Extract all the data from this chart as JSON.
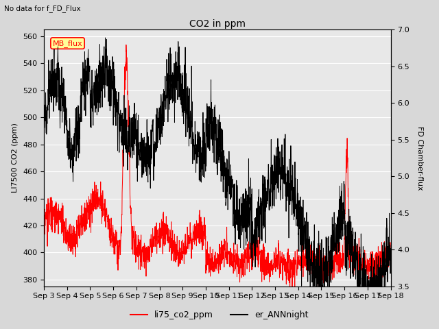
{
  "title": "CO2 in ppm",
  "suptitle": "No data for f_FD_Flux",
  "ylabel_left": "LI7500 CO2 (ppm)",
  "ylabel_right": "FD Chamber-flux",
  "ylim_left": [
    375,
    565
  ],
  "ylim_right": [
    3.5,
    7.0
  ],
  "yticks_left": [
    380,
    400,
    420,
    440,
    460,
    480,
    500,
    520,
    540,
    560
  ],
  "yticks_right": [
    3.5,
    4.0,
    4.5,
    5.0,
    5.5,
    6.0,
    6.5,
    7.0
  ],
  "xtick_labels": [
    "Sep 3",
    "Sep 4",
    "Sep 5",
    "Sep 6",
    "Sep 7",
    "Sep 8",
    "Sep 9",
    "Sep 10",
    "Sep 11",
    "Sep 12",
    "Sep 13",
    "Sep 14",
    "Sep 15",
    "Sep 16",
    "Sep 17",
    "Sep 18"
  ],
  "legend_entries": [
    "li75_co2_ppm",
    "er_ANNnight"
  ],
  "legend_colors": [
    "red",
    "black"
  ],
  "bg_color": "#d8d8d8",
  "plot_bg_color": "#e8e8e8",
  "grid_color": "white",
  "n_days": 15
}
